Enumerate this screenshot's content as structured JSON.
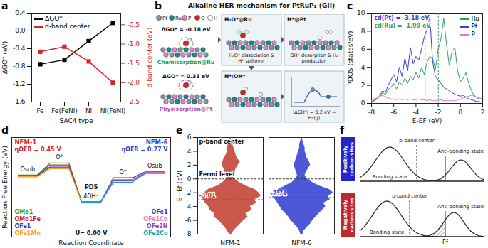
{
  "chart_data": [
    {
      "panel": "a",
      "type": "line",
      "x_label": "SAC4 type",
      "y_label": "ΔGO* (eV)",
      "y2_label": "d-band center (eV)",
      "categories": [
        "Fe",
        "Fe(FeNi)",
        "Ni",
        "Ni(FeNi)"
      ],
      "ylim": [
        -1.6,
        0.4
      ],
      "yticks": [
        -1.6,
        -1.2,
        -0.8,
        -0.4,
        {
          "value": 0,
          "label": "0.0"
        },
        0.4
      ],
      "y2lim": [
        -2.5,
        -0.2
      ],
      "y2ticks": [
        -2.5,
        {
          "value": -2,
          "label": "-2.0"
        },
        -1.5,
        {
          "value": -1,
          "label": "-1.0"
        },
        -0.5
      ],
      "legend": "top-left",
      "series": [
        {
          "name": "ΔGO*",
          "color": "#000000",
          "marker": "square",
          "values": [
            -0.75,
            -0.65,
            -0.23,
            0.18
          ]
        },
        {
          "name": "d-band center",
          "color": "#d62728",
          "marker": "square",
          "axis": "y2",
          "values": [
            -1.2,
            -1.07,
            -1.45,
            -2.0
          ]
        }
      ]
    },
    {
      "panel": "c",
      "type": "line",
      "x_label": "E-EF (eV)",
      "y_label": "PDOS (states/eV)",
      "x": [
        -8,
        -7.75,
        -7.5,
        -7.25,
        -7,
        -6.75,
        -6.5,
        -6.25,
        -6,
        -5.75,
        -5.5,
        -5.25,
        -5,
        -4.75,
        -4.5,
        -4.25,
        -4,
        -3.75,
        -3.5,
        -3.25,
        -3,
        -2.75,
        -2.5,
        -2.25,
        -2,
        -1.75,
        -1.5,
        -1.25,
        -1,
        -0.75,
        -0.5,
        -0.25,
        0,
        0.25,
        0.5,
        0.75,
        1,
        1.25,
        1.5,
        1.75,
        2
      ],
      "xlim": [
        -8,
        2
      ],
      "xticks": [
        -8,
        -6,
        -4,
        -2,
        0,
        2
      ],
      "ylim": [
        0,
        10
      ],
      "yticks": [
        0,
        2,
        4,
        6,
        8,
        10
      ],
      "legend": "top-right",
      "series": [
        {
          "name": "Ru",
          "color": "#2ca25f",
          "values": [
            0.2,
            0.4,
            0.6,
            0.8,
            1.2,
            1.0,
            1.5,
            1.8,
            2.2,
            1.6,
            2.4,
            2.0,
            2.8,
            2.2,
            3.0,
            2.6,
            3.4,
            2.8,
            4.0,
            3.2,
            4.6,
            5.2,
            5.0,
            3.8,
            6.0,
            7.2,
            9.4,
            6.5,
            4.2,
            5.8,
            6.2,
            3.6,
            2.4,
            2.8,
            3.4,
            2.2,
            1.4,
            0.9,
            0.6,
            0.5,
            0.4
          ]
        },
        {
          "name": "Pt",
          "color": "#3b3bdb",
          "values": [
            0.1,
            0.3,
            0.5,
            0.9,
            1.4,
            1.2,
            2.0,
            2.6,
            3.2,
            2.4,
            4.0,
            3.0,
            5.0,
            3.6,
            6.2,
            4.4,
            5.2,
            4.8,
            6.0,
            7.4,
            8.2,
            9.6,
            4.6,
            3.0,
            2.6,
            2.2,
            1.8,
            1.6,
            1.4,
            1.2,
            1.0,
            0.9,
            0.8,
            0.9,
            0.7,
            0.5,
            0.4,
            0.3,
            0.2,
            0.2,
            0.1
          ]
        },
        {
          "name": "P",
          "color": "#e377c2",
          "values": [
            0.3,
            0.5,
            0.6,
            0.8,
            0.9,
            0.7,
            0.6,
            0.5,
            0.5,
            0.4,
            0.5,
            0.4,
            0.5,
            0.4,
            0.5,
            0.4,
            0.4,
            0.5,
            0.4,
            0.4,
            0.3,
            0.4,
            0.3,
            0.3,
            0.3,
            0.4,
            0.3,
            0.3,
            0.3,
            0.3,
            0.3,
            0.4,
            0.5,
            0.6,
            0.7,
            0.8,
            0.9,
            0.8,
            0.7,
            0.6,
            0.5
          ]
        }
      ],
      "d_band_centers": [
        {
          "series": "Pt",
          "value": -3.18,
          "label": "εd(Pt) = -3.18 eV"
        },
        {
          "series": "Ru",
          "value": -1.99,
          "label": "εd(Ru) = -1.99 eV"
        }
      ]
    },
    {
      "panel": "d",
      "type": "line",
      "x_label": "Reaction Coordinate",
      "y_label": "Reaction Free Energy (eV)",
      "tick_labels": false,
      "xlim": [
        -0.5,
        4.5
      ],
      "ylim": [
        -1.3,
        2.4
      ],
      "categories": [
        "Osub",
        "O*",
        "4OH⁻",
        "O*",
        "Osub"
      ],
      "legend": "bottom",
      "pds_label": "PDS",
      "potential_label": "U= 0.00 V",
      "groups": [
        {
          "name": "NFM-1",
          "overpotential_label": "ηOER = 0.45 V",
          "color": "#d62728",
          "series": [
            {
              "name": "OMo1",
              "color": "#2ca02c",
              "values": [
                1.0,
                1.45,
                0,
                null,
                null
              ]
            },
            {
              "name": "OMo1Fe",
              "color": "#d62728",
              "values": [
                0.98,
                1.38,
                0,
                null,
                null
              ]
            },
            {
              "name": "OFe1",
              "color": "#1f3fd1",
              "values": [
                0.96,
                1.3,
                0,
                null,
                null
              ]
            },
            {
              "name": "OFe1Mo",
              "color": "#ff9f1c",
              "values": [
                0.94,
                1.24,
                0,
                null,
                null
              ]
            }
          ]
        },
        {
          "name": "NFM-6",
          "overpotential_label": "ηOER = 0.27 V",
          "color": "#1f3fd1",
          "series": [
            {
              "name": "OFe1",
              "color": "#1f3fd1",
              "values": [
                null,
                null,
                0,
                0.9,
                1.12
              ]
            },
            {
              "name": "OFe1Co",
              "color": "#e377c2",
              "values": [
                null,
                null,
                0,
                0.84,
                1.1
              ]
            },
            {
              "name": "OFe2N",
              "color": "#8e44ad",
              "values": [
                null,
                null,
                0,
                0.79,
                1.08
              ]
            },
            {
              "name": "OFe2Co",
              "color": "#17a2b8",
              "values": [
                null,
                null,
                0,
                0.74,
                1.06
              ]
            }
          ]
        }
      ]
    },
    {
      "panel": "e",
      "type": "area",
      "y_label": "E−Ef (eV)",
      "tick_labels": "y",
      "xlim": [
        -3,
        3
      ],
      "ylim": [
        -8,
        6
      ],
      "yticks": [
        -8,
        -6,
        -4,
        -2,
        0,
        2,
        4,
        6
      ],
      "fermi_level": 0,
      "annotations": {
        "fermi": "Fermi level",
        "center": "p-band center"
      },
      "energies": [
        -8,
        -7.5,
        -7,
        -6.5,
        -6,
        -5.5,
        -5,
        -4.5,
        -4,
        -3.5,
        -3,
        -2.5,
        -2,
        -1.5,
        -1,
        -0.5,
        0,
        0.5,
        1,
        1.5,
        2,
        2.5,
        3,
        3.5,
        4,
        4.5,
        5,
        5.5,
        6
      ],
      "series": [
        {
          "name": "NFM-1",
          "color": "#c0392b",
          "p_band_center": -3.01,
          "up": [
            0.1,
            0.3,
            0.6,
            0.9,
            1.2,
            1.6,
            1.4,
            2.0,
            1.8,
            2.4,
            2.2,
            2.8,
            2.6,
            2.2,
            1.4,
            0.8,
            0.4,
            0.3,
            0.4,
            0.5,
            0.7,
            0.9,
            0.6,
            0.5,
            0.4,
            0.3,
            0.2,
            0.1,
            0.05
          ],
          "down": [
            -0.1,
            -0.3,
            -0.5,
            -0.8,
            -1.1,
            -1.5,
            -1.5,
            -1.9,
            -2.0,
            -2.3,
            -2.5,
            -2.6,
            -2.4,
            -2.0,
            -1.2,
            -0.7,
            -0.4,
            -0.4,
            -0.5,
            -0.6,
            -0.8,
            -0.7,
            -0.6,
            -0.4,
            -0.3,
            -0.3,
            -0.2,
            -0.1,
            -0.05
          ]
        },
        {
          "name": "NFM-6",
          "color": "#2e3bd1",
          "p_band_center": -2.71,
          "up": [
            0.1,
            0.2,
            0.5,
            0.8,
            1.0,
            1.3,
            1.6,
            1.9,
            2.2,
            2.0,
            2.6,
            2.4,
            2.9,
            2.5,
            1.6,
            1.0,
            0.5,
            0.3,
            0.4,
            0.6,
            0.8,
            0.7,
            0.5,
            0.4,
            0.3,
            0.3,
            0.2,
            0.1,
            0.05
          ],
          "down": [
            -0.1,
            -0.2,
            -0.4,
            -0.7,
            -1.0,
            -1.2,
            -1.5,
            -1.8,
            -2.0,
            -2.2,
            -2.4,
            -2.7,
            -2.5,
            -2.1,
            -1.5,
            -0.9,
            -0.5,
            -0.4,
            -0.5,
            -0.6,
            -0.7,
            -0.6,
            -0.5,
            -0.4,
            -0.3,
            -0.2,
            -0.2,
            -0.1,
            -0.05
          ]
        }
      ]
    }
  ],
  "diagrams": {
    "b": {
      "panel": "b",
      "title": "Alkaline HER mechanism for PtRuP₂ (GII)",
      "atoms": [
        {
          "label": "Pt",
          "color": "#8795a1"
        },
        {
          "label": "Ru",
          "color": "#1f8a8a"
        },
        {
          "label": "P",
          "color": "#d68ad6"
        },
        {
          "label": "O",
          "color": "#d62728"
        },
        {
          "label": "H",
          "color": "#ffffff"
        }
      ],
      "adsorption": [
        {
          "energy": "ΔGO* = -0.18 eV",
          "site": "Chemisorption@Ru",
          "color": "#22a045"
        },
        {
          "energy": "ΔGO* = 0.33 eV",
          "site": "Physisorption@Pt",
          "color": "#b04fb0"
        }
      ],
      "steps": [
        {
          "label": "H₂O*@Ru",
          "caption": "H₂O* dissociation & H* spillover"
        },
        {
          "label": "H*@Pt",
          "caption": "OH⁻ desorption & H₂ production"
        },
        {
          "label": "H*/OH*"
        }
      ],
      "inset": "|ΔGH*| ≈ 0.2 eV → H₂(g)"
    },
    "f": {
      "panel": "f",
      "rows": [
        {
          "label": "Positively carbon sites",
          "color": "#2424c8"
        },
        {
          "label": "Negatively carbon sites",
          "color": "#c0282d"
        }
      ],
      "center_label": "p-band center",
      "bonding_label": "Bonding state",
      "antibonding_label": "Anti-bonding state",
      "fermi_label": "Ef"
    }
  }
}
